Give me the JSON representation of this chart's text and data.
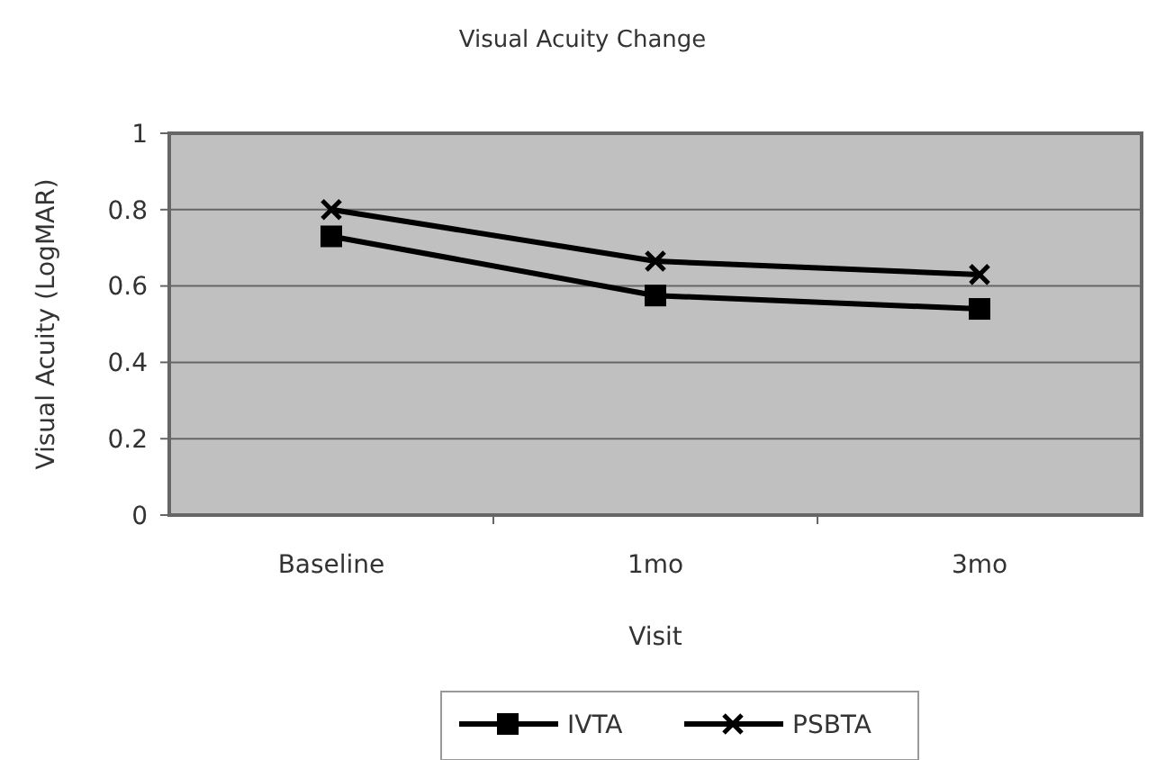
{
  "chart_data": {
    "type": "line",
    "title": "Visual Acuity Change",
    "xlabel": "Visit",
    "ylabel": "Visual Acuity (LogMAR)",
    "categories": [
      "Baseline",
      "1mo",
      "3mo"
    ],
    "ylim": [
      0,
      1
    ],
    "yticks": [
      0,
      0.2,
      0.4,
      0.6,
      0.8,
      1
    ],
    "grid": "y",
    "legend": "bottom",
    "line_style": "solid",
    "series": [
      {
        "name": "IVTA",
        "color": "#000000",
        "marker": "square",
        "values": [
          0.73,
          0.575,
          0.54
        ]
      },
      {
        "name": "PSBTA",
        "color": "#000000",
        "marker": "cross",
        "values": [
          0.8,
          0.665,
          0.63
        ]
      }
    ]
  }
}
